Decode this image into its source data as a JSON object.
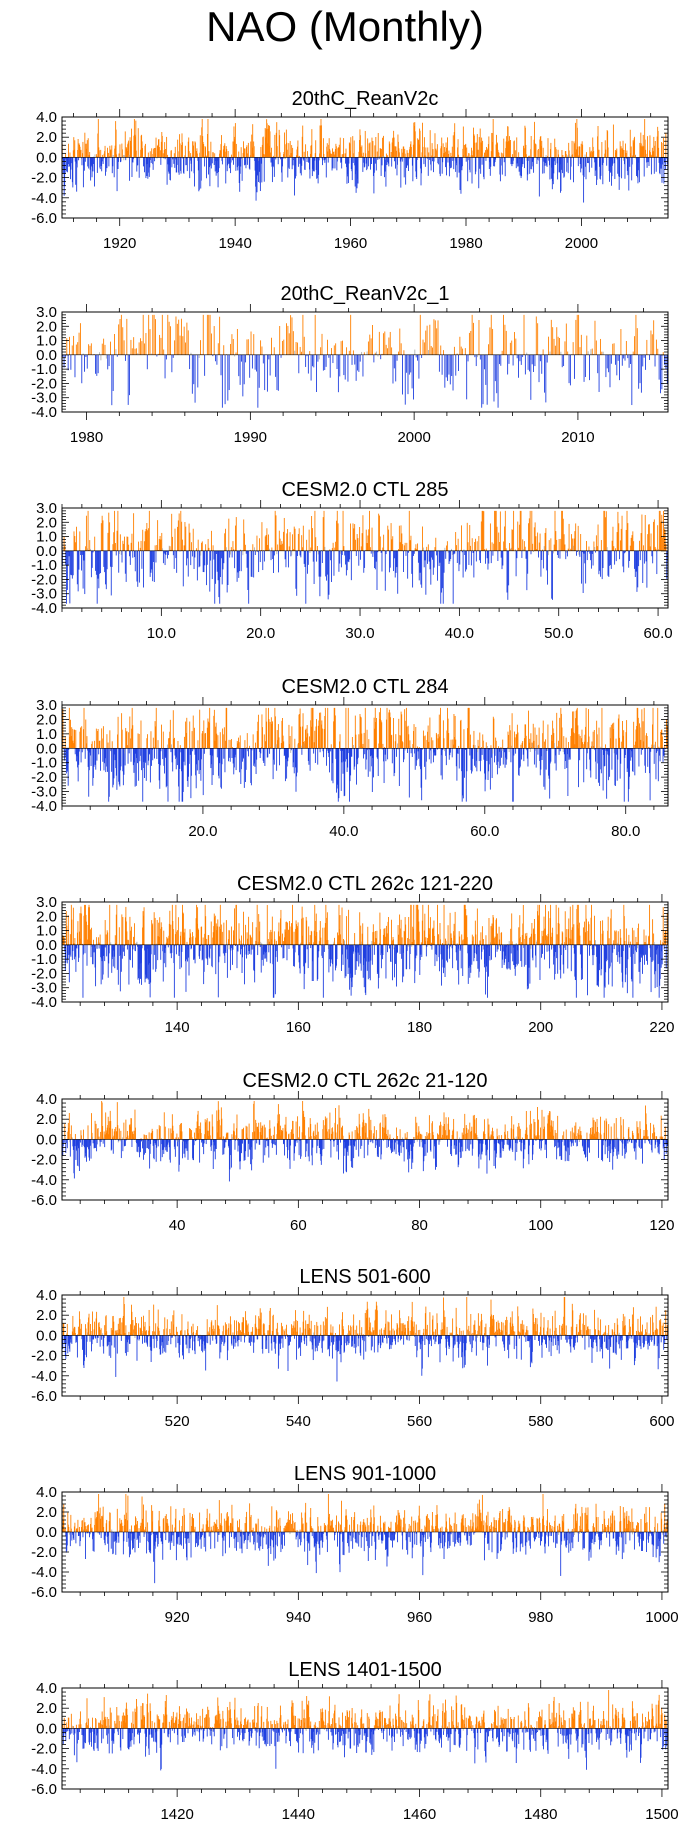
{
  "title": "NAO (Monthly)",
  "colors": {
    "positive": "#ff8000",
    "negative": "#2040e0",
    "faint": "#b4b4b4",
    "axis": "#000000"
  },
  "chart_data": [
    {
      "type": "bar",
      "title": "20thC_ReanV2c",
      "xlabel": "",
      "ylabel": "",
      "xlim": [
        1910,
        2015
      ],
      "ylim": [
        -6,
        4
      ],
      "yticks": [
        4,
        2,
        0,
        -2,
        -4,
        -6
      ],
      "ytick_labels": [
        "4.0",
        "2.0",
        "0.0",
        "-2.0",
        "-4.0",
        "-6.0"
      ],
      "xticks": [
        1920,
        1940,
        1960,
        1980,
        2000
      ],
      "xtick_labels": [
        "1920",
        "1940",
        "1960",
        "1980",
        "2000"
      ],
      "series": [
        {
          "values_summary": "monthly NAO index, positive bars orange, negative bars blue; range approx -4.5 to 3",
          "amplitude": 1.4
        }
      ]
    },
    {
      "type": "bar",
      "title": "20thC_ReanV2c_1",
      "xlabel": "",
      "ylabel": "",
      "xlim": [
        1978.5,
        2015.5
      ],
      "ylim": [
        -4,
        3
      ],
      "yticks": [
        3,
        2,
        1,
        0,
        -1,
        -2,
        -3,
        -4
      ],
      "ytick_labels": [
        "3.0",
        "2.0",
        "1.0",
        "0.0",
        "-1.0",
        "-2.0",
        "-3.0",
        "-4.0"
      ],
      "xticks": [
        1980,
        1990,
        2000,
        2010
      ],
      "xtick_labels": [
        "1980",
        "1990",
        "2000",
        "2010"
      ],
      "series": [
        {
          "values_summary": "monthly NAO index; minimum near -3.3 around 2010, maxima near 2.8 around 1989",
          "amplitude": 1.6
        }
      ]
    },
    {
      "type": "bar",
      "title": "CESM2.0 CTL 285",
      "xlabel": "",
      "ylabel": "",
      "xlim": [
        0,
        61
      ],
      "ylim": [
        -4,
        3
      ],
      "yticks": [
        3,
        2,
        1,
        0,
        -1,
        -2,
        -3,
        -4
      ],
      "ytick_labels": [
        "3.0",
        "2.0",
        "1.0",
        "0.0",
        "-1.0",
        "-2.0",
        "-3.0",
        "-4.0"
      ],
      "xticks": [
        10,
        20,
        30,
        40,
        50,
        60
      ],
      "xtick_labels": [
        "10.0",
        "20.0",
        "30.0",
        "40.0",
        "50.0",
        "60.0"
      ],
      "series": [
        {
          "values_summary": "monthly NAO index; range approx -3.2 to 2.9",
          "amplitude": 1.5
        }
      ]
    },
    {
      "type": "bar",
      "title": "CESM2.0 CTL 284",
      "xlabel": "",
      "ylabel": "",
      "xlim": [
        0,
        86
      ],
      "ylim": [
        -4,
        3
      ],
      "yticks": [
        3,
        2,
        1,
        0,
        -1,
        -2,
        -3,
        -4
      ],
      "ytick_labels": [
        "3.0",
        "2.0",
        "1.0",
        "0.0",
        "-1.0",
        "-2.0",
        "-3.0",
        "-4.0"
      ],
      "xticks": [
        20,
        40,
        60,
        80
      ],
      "xtick_labels": [
        "20.0",
        "40.0",
        "60.0",
        "80.0"
      ],
      "series": [
        {
          "values_summary": "monthly NAO index; range approx -3.2 to 2.5",
          "amplitude": 1.5
        }
      ]
    },
    {
      "type": "bar",
      "title": "CESM2.0 CTL 262c 121-220",
      "xlabel": "",
      "ylabel": "",
      "xlim": [
        121,
        221
      ],
      "ylim": [
        -4,
        3
      ],
      "yticks": [
        3,
        2,
        1,
        0,
        -1,
        -2,
        -3,
        -4
      ],
      "ytick_labels": [
        "3.0",
        "2.0",
        "1.0",
        "0.0",
        "-1.0",
        "-2.0",
        "-3.0",
        "-4.0"
      ],
      "xticks": [
        140,
        160,
        180,
        200,
        220
      ],
      "xtick_labels": [
        "140",
        "160",
        "180",
        "200",
        "220"
      ],
      "series": [
        {
          "values_summary": "monthly NAO index; range approx -3 to 2.7",
          "amplitude": 1.5
        }
      ]
    },
    {
      "type": "bar",
      "title": "CESM2.0 CTL 262c 21-120",
      "xlabel": "",
      "ylabel": "",
      "xlim": [
        21,
        121
      ],
      "ylim": [
        -6,
        4
      ],
      "yticks": [
        4,
        2,
        0,
        -2,
        -4,
        -6
      ],
      "ytick_labels": [
        "4.0",
        "2.0",
        "0.0",
        "-2.0",
        "-4.0",
        "-6.0"
      ],
      "xticks": [
        40,
        60,
        80,
        100,
        120
      ],
      "xtick_labels": [
        "40",
        "60",
        "80",
        "100",
        "120"
      ],
      "series": [
        {
          "values_summary": "monthly NAO index; range approx -3.8 to 2.2",
          "amplitude": 1.2
        }
      ]
    },
    {
      "type": "bar",
      "title": "LENS 501-600",
      "xlabel": "",
      "ylabel": "",
      "xlim": [
        501,
        601
      ],
      "ylim": [
        -6,
        4
      ],
      "yticks": [
        4,
        2,
        0,
        -2,
        -4,
        -6
      ],
      "ytick_labels": [
        "4.0",
        "2.0",
        "0.0",
        "-2.0",
        "-4.0",
        "-6.0"
      ],
      "xticks": [
        520,
        540,
        560,
        580,
        600
      ],
      "xtick_labels": [
        "520",
        "540",
        "560",
        "580",
        "600"
      ],
      "series": [
        {
          "values_summary": "monthly NAO index; range approx -3.6 to 2.2",
          "amplitude": 1.2
        }
      ]
    },
    {
      "type": "bar",
      "title": "LENS 901-1000",
      "xlabel": "",
      "ylabel": "",
      "xlim": [
        901,
        1001
      ],
      "ylim": [
        -6,
        4
      ],
      "yticks": [
        4,
        2,
        0,
        -2,
        -4,
        -6
      ],
      "ytick_labels": [
        "4.0",
        "2.0",
        "0.0",
        "-2.0",
        "-4.0",
        "-6.0"
      ],
      "xticks": [
        920,
        940,
        960,
        980,
        1000
      ],
      "xtick_labels": [
        "920",
        "940",
        "960",
        "980",
        "1000"
      ],
      "series": [
        {
          "values_summary": "monthly NAO index; range approx -4.8 to 2.6",
          "amplitude": 1.2
        }
      ]
    },
    {
      "type": "bar",
      "title": "LENS 1401-1500",
      "xlabel": "",
      "ylabel": "",
      "xlim": [
        1401,
        1501
      ],
      "ylim": [
        -6,
        4
      ],
      "yticks": [
        4,
        2,
        0,
        -2,
        -4,
        -6
      ],
      "ytick_labels": [
        "4.0",
        "2.0",
        "0.0",
        "-2.0",
        "-4.0",
        "-6.0"
      ],
      "xticks": [
        1420,
        1440,
        1460,
        1480,
        1500
      ],
      "xtick_labels": [
        "1420",
        "1440",
        "1460",
        "1480",
        "1500"
      ],
      "series": [
        {
          "values_summary": "monthly NAO index; range approx -4.2 to 2.5",
          "amplitude": 1.2
        }
      ]
    }
  ]
}
